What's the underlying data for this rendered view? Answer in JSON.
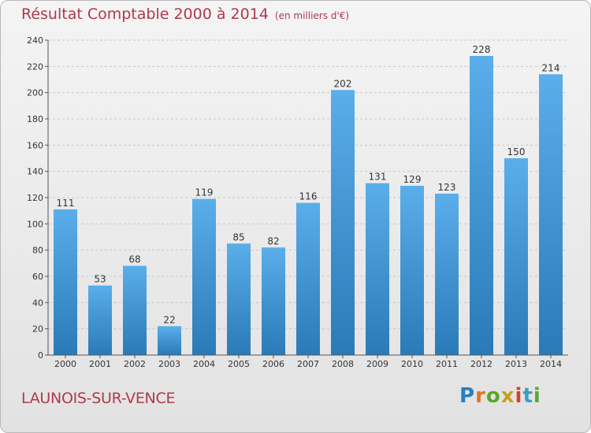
{
  "header": {
    "title": "Résultat Comptable 2000 à 2014",
    "subtitle": "(en milliers d'€)"
  },
  "footer": {
    "commune": "LAUNOIS-SUR-VENCE",
    "logo_letters": [
      "P",
      "r",
      "o",
      "x",
      "i",
      "t",
      "i"
    ]
  },
  "colors": {
    "title": "#b0394e",
    "bar_top": "#5aaeea",
    "bar_bottom": "#2a7ab8"
  },
  "chart_data": {
    "type": "bar",
    "title": "Résultat Comptable 2000 à 2014",
    "xlabel": "",
    "ylabel": "",
    "ylim": [
      0,
      240
    ],
    "yticks": [
      0,
      20,
      40,
      60,
      80,
      100,
      120,
      140,
      160,
      180,
      200,
      220,
      240
    ],
    "grid": true,
    "categories": [
      "2000",
      "2001",
      "2002",
      "2003",
      "2004",
      "2005",
      "2006",
      "2007",
      "2008",
      "2009",
      "2010",
      "2011",
      "2012",
      "2013",
      "2014"
    ],
    "values": [
      111,
      53,
      68,
      22,
      119,
      85,
      82,
      116,
      202,
      131,
      129,
      123,
      228,
      150,
      214
    ]
  }
}
